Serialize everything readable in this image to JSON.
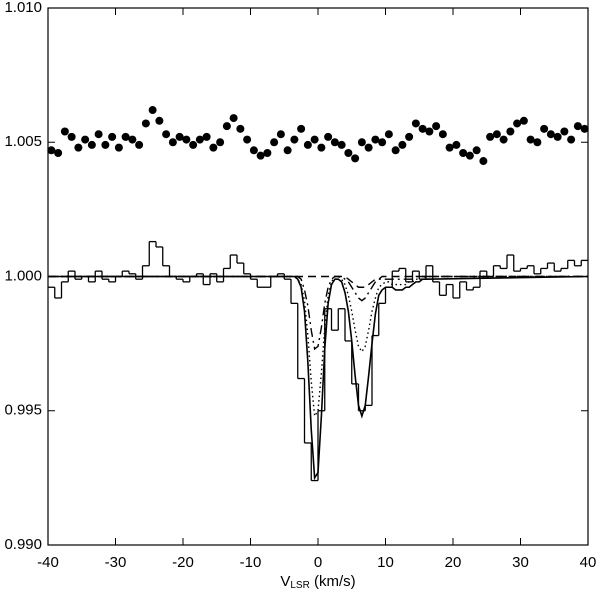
{
  "chart_data": {
    "type": "line",
    "x_label": [
      "V",
      "LSR",
      " (km/s)"
    ],
    "xlim": [
      -40,
      40
    ],
    "ylim": [
      0.99,
      1.01
    ],
    "xticks": [
      -40,
      -30,
      -20,
      -10,
      0,
      10,
      20,
      30,
      40
    ],
    "yticks": [
      {
        "value": 0.99,
        "label": "0.990"
      },
      {
        "value": 0.995,
        "label": "0.995"
      },
      {
        "value": 1.0,
        "label": "1.000"
      },
      {
        "value": 1.005,
        "label": "1.005"
      },
      {
        "value": 1.01,
        "label": "1.010"
      }
    ],
    "series": [
      {
        "style": "dots",
        "color": "#000000",
        "x": [
          -39.5,
          -38.5,
          -37.5,
          -36.5,
          -35.5,
          -34.5,
          -33.5,
          -32.5,
          -31.5,
          -30.5,
          -29.5,
          -28.5,
          -27.5,
          -26.5,
          -25.5,
          -24.5,
          -23.5,
          -22.5,
          -21.5,
          -20.5,
          -19.5,
          -18.5,
          -17.5,
          -16.5,
          -15.5,
          -14.5,
          -13.5,
          -12.5,
          -11.5,
          -10.5,
          -9.5,
          -8.5,
          -7.5,
          -6.5,
          -5.5,
          -4.5,
          -3.5,
          -2.5,
          -1.5,
          -0.5,
          0.5,
          1.5,
          2.5,
          3.5,
          4.5,
          5.5,
          6.5,
          7.5,
          8.5,
          9.5,
          10.5,
          11.5,
          12.5,
          13.5,
          14.5,
          15.5,
          16.5,
          17.5,
          18.5,
          19.5,
          20.5,
          21.5,
          22.5,
          23.5,
          24.5,
          25.5,
          26.5,
          27.5,
          28.5,
          29.5,
          30.5,
          31.5,
          32.5,
          33.5,
          34.5,
          35.5,
          36.5,
          37.5,
          38.5,
          39.5
        ],
        "values": [
          1.0047,
          1.0046,
          1.0054,
          1.0052,
          1.0048,
          1.0051,
          1.0049,
          1.0053,
          1.0049,
          1.0052,
          1.0048,
          1.0052,
          1.0051,
          1.0049,
          1.0057,
          1.0062,
          1.0058,
          1.0053,
          1.005,
          1.0052,
          1.0051,
          1.0049,
          1.0051,
          1.0052,
          1.0048,
          1.005,
          1.0056,
          1.0059,
          1.0055,
          1.0051,
          1.0047,
          1.0045,
          1.0046,
          1.005,
          1.0053,
          1.0047,
          1.0051,
          1.0055,
          1.0049,
          1.0051,
          1.0048,
          1.0052,
          1.005,
          1.0049,
          1.0046,
          1.0044,
          1.005,
          1.0048,
          1.0051,
          1.005,
          1.0053,
          1.0047,
          1.0049,
          1.0052,
          1.0057,
          1.0055,
          1.0054,
          1.0056,
          1.0053,
          1.0048,
          1.0049,
          1.0046,
          1.0045,
          1.0047,
          1.0043,
          1.0052,
          1.0053,
          1.0051,
          1.0054,
          1.0057,
          1.0058,
          1.0051,
          1.005,
          1.0055,
          1.0053,
          1.0052,
          1.0054,
          1.0051,
          1.0056,
          1.0055
        ]
      },
      {
        "style": "step",
        "color": "#000000",
        "bins": [
          -40,
          -39,
          -38,
          -37,
          -36,
          -35,
          -34,
          -33,
          -32,
          -31,
          -30,
          -29,
          -28,
          -27,
          -26,
          -25,
          -24,
          -23,
          -22,
          -21,
          -20,
          -19,
          -18,
          -17,
          -16,
          -15,
          -14,
          -13,
          -12,
          -11,
          -10,
          -9,
          -8,
          -7,
          -6,
          -5,
          -4,
          -3,
          -2,
          -1,
          0,
          1,
          2,
          3,
          4,
          5,
          6,
          7,
          8,
          9,
          10,
          11,
          12,
          13,
          14,
          15,
          16,
          17,
          18,
          19,
          20,
          21,
          22,
          23,
          24,
          25,
          26,
          27,
          28,
          29,
          30,
          31,
          32,
          33,
          34,
          35,
          36,
          37,
          38,
          39,
          40
        ],
        "values": [
          0.9996,
          0.9992,
          0.9998,
          1.0002,
          0.9999,
          1.0,
          0.9998,
          1.0002,
          0.9999,
          0.9998,
          1.0,
          1.0002,
          1.0001,
          0.9999,
          1.0004,
          1.0013,
          1.0011,
          1.0004,
          1.0,
          0.9999,
          0.9998,
          1.0,
          1.0001,
          0.9997,
          1.0001,
          0.9998,
          1.0003,
          1.0008,
          1.0005,
          1.0001,
          0.9999,
          0.9996,
          0.9996,
          1.0,
          1.0001,
          0.9999,
          0.999,
          0.9962,
          0.9938,
          0.9924,
          0.995,
          0.9988,
          0.998,
          0.9988,
          0.9976,
          0.996,
          0.995,
          0.9952,
          0.9978,
          0.999,
          0.9996,
          1.0002,
          1.0003,
          0.9998,
          1.0002,
          0.9999,
          1.0004,
          0.9998,
          0.9993,
          0.9997,
          0.9992,
          0.9998,
          0.9995,
          0.9996,
          1.0002,
          1.0,
          1.0004,
          1.0003,
          1.0008,
          1.0002,
          1.0003,
          1.0004,
          1.0001,
          1.0003,
          1.0005,
          1.0002,
          1.0003,
          1.0006,
          1.0004,
          1.0006
        ]
      },
      {
        "style": "solid",
        "color": "#000000",
        "x": [
          -40,
          -4,
          -3.5,
          -3,
          -2.5,
          -2,
          -1.5,
          -1,
          -0.5,
          0,
          0.5,
          1,
          1.5,
          2,
          2.5,
          3,
          3.5,
          4,
          4.5,
          5,
          5.5,
          6,
          6.5,
          7,
          7.5,
          8,
          8.5,
          9,
          9.5,
          10,
          10.5,
          11,
          11.5,
          12,
          12.5,
          13,
          13.5,
          14,
          14.5,
          15,
          15.5,
          16,
          40
        ],
        "values": [
          1.0,
          1.0,
          1.0,
          0.9999,
          0.9996,
          0.9987,
          0.9968,
          0.9943,
          0.9925,
          0.9927,
          0.9948,
          0.9973,
          0.999,
          0.9997,
          0.9999,
          0.9999,
          0.9998,
          0.9994,
          0.9987,
          0.9976,
          0.9963,
          0.9952,
          0.9948,
          0.9952,
          0.9963,
          0.9975,
          0.9986,
          0.9993,
          0.9995,
          0.9996,
          0.9996,
          0.9996,
          0.9995,
          0.9995,
          0.9995,
          0.9996,
          0.9996,
          0.9997,
          0.9998,
          0.9998,
          0.9999,
          0.9999,
          1.0
        ]
      },
      {
        "style": "dotted",
        "color": "#000000",
        "x": [
          -40,
          -4,
          -3.5,
          -3,
          -2.5,
          -2,
          -1.5,
          -1,
          -0.5,
          0,
          0.5,
          1,
          1.5,
          2,
          2.5,
          3,
          3.5,
          4,
          4.5,
          5,
          5.5,
          6,
          6.5,
          7,
          7.5,
          8,
          8.5,
          9,
          9.5,
          10,
          10.5,
          11,
          11.5,
          12,
          12.5,
          13,
          13.5,
          14,
          14.5,
          15,
          15.5,
          16,
          40
        ],
        "values": [
          1.0,
          1.0,
          1.0,
          0.9999,
          0.9997,
          0.9991,
          0.9978,
          0.9961,
          0.9948,
          0.995,
          0.9964,
          0.9981,
          0.9993,
          0.9998,
          1.0,
          1.0,
          0.9999,
          0.9997,
          0.9993,
          0.9987,
          0.998,
          0.9974,
          0.9972,
          0.9974,
          0.998,
          0.9987,
          0.9992,
          0.9996,
          0.9997,
          0.9998,
          0.9998,
          0.9997,
          0.9997,
          0.9997,
          0.9997,
          0.9997,
          0.9998,
          0.9998,
          0.9999,
          0.9999,
          0.9999,
          1.0,
          1.0
        ]
      },
      {
        "style": "dashdot",
        "color": "#000000",
        "x": [
          -40,
          -4,
          -3.5,
          -3,
          -2.5,
          -2,
          -1.5,
          -1,
          -0.5,
          0,
          0.5,
          1,
          1.5,
          2,
          2.5,
          3,
          3.5,
          4,
          4.5,
          5,
          5.5,
          6,
          6.5,
          7,
          7.5,
          8,
          8.5,
          9,
          9.5,
          10,
          10.5,
          11,
          11.5,
          12,
          12.5,
          13,
          13.5,
          14,
          14.5,
          15,
          15.5,
          16,
          40
        ],
        "values": [
          1.0,
          1.0,
          1.0,
          1.0,
          0.9999,
          0.9995,
          0.9989,
          0.998,
          0.9973,
          0.9974,
          0.9981,
          0.999,
          0.9996,
          0.9999,
          1.0,
          1.0,
          1.0,
          0.9999,
          0.9998,
          0.9996,
          0.9994,
          0.9992,
          0.9991,
          0.9992,
          0.9994,
          0.9996,
          0.9998,
          0.9999,
          0.9999,
          0.9999,
          0.9999,
          0.9999,
          0.9999,
          0.9999,
          0.9999,
          0.9999,
          0.9999,
          0.9999,
          1.0,
          1.0,
          1.0,
          1.0,
          1.0
        ]
      },
      {
        "style": "dashed",
        "color": "#000000",
        "x": [
          -40,
          -4,
          -3.5,
          -3,
          -2.5,
          -2,
          -1.5,
          -1,
          -0.5,
          0,
          0.5,
          1,
          1.5,
          2,
          2.5,
          3,
          3.5,
          4,
          4.5,
          5,
          5.5,
          6,
          6.5,
          7,
          7.5,
          8,
          8.5,
          9,
          9.5,
          10,
          10.5,
          11,
          11.5,
          12,
          12.5,
          13,
          13.5,
          14,
          14.5,
          15,
          15.5,
          16,
          40
        ],
        "values": [
          1.0,
          1.0,
          1.0,
          1.0,
          1.0,
          1.0,
          1.0,
          1.0,
          1.0,
          1.0,
          1.0,
          1.0,
          1.0,
          1.0,
          1.0,
          1.0,
          1.0,
          1.0,
          0.9999,
          0.9998,
          0.9997,
          0.9996,
          0.9996,
          0.9996,
          0.9997,
          0.9998,
          0.9999,
          0.9999,
          1.0,
          1.0,
          1.0,
          1.0,
          1.0,
          1.0,
          1.0,
          1.0,
          1.0,
          1.0,
          1.0,
          1.0,
          1.0,
          1.0,
          1.0
        ]
      }
    ]
  }
}
